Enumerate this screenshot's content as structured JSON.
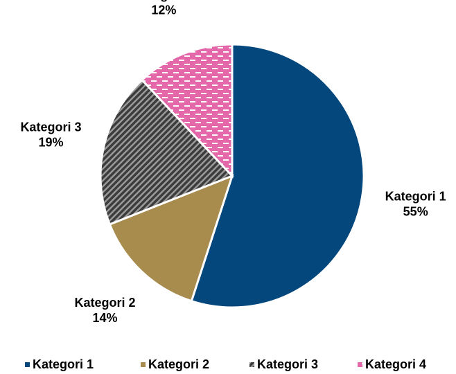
{
  "chart_data": {
    "type": "pie",
    "categories": [
      "Kategori 1",
      "Kategori 2",
      "Kategori 3",
      "Kategori 4"
    ],
    "values": [
      55,
      14,
      19,
      12
    ],
    "value_labels": [
      "55%",
      "14%",
      "19%",
      "12%"
    ],
    "colors": [
      "#03477c",
      "#a88c4d",
      "#3c3c3c",
      "#e367a9"
    ],
    "patterns": [
      "solid",
      "solid",
      "diagonal",
      "dash"
    ],
    "legend": "bottom"
  }
}
